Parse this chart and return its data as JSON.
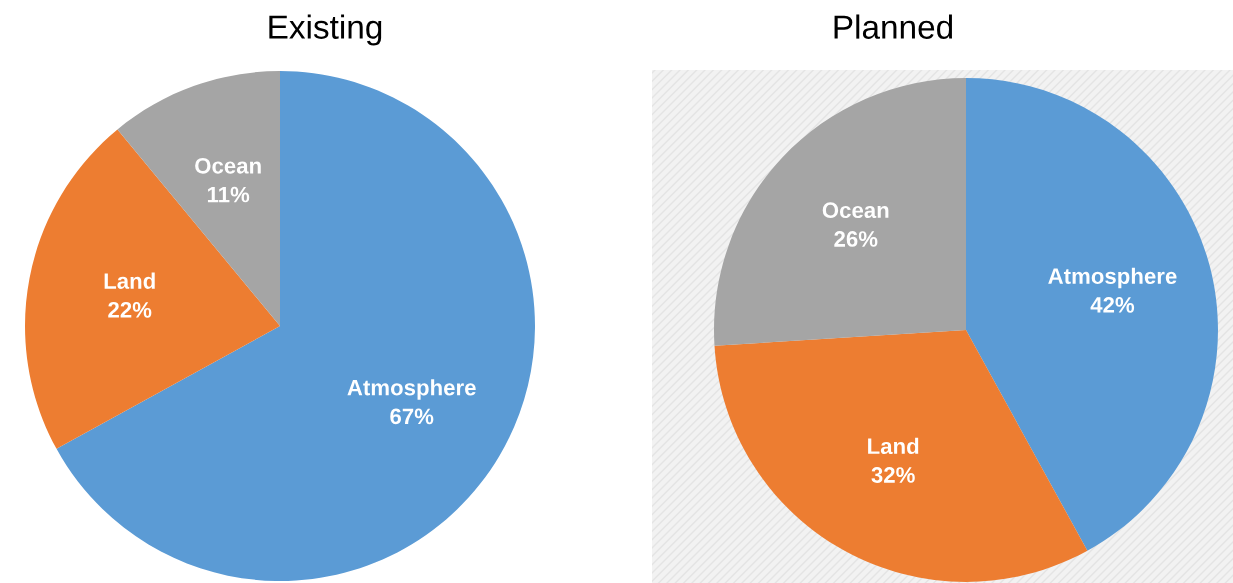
{
  "chart_data": [
    {
      "type": "pie",
      "title": "Existing",
      "categories": [
        "Atmosphere",
        "Land",
        "Ocean"
      ],
      "values": [
        67,
        22,
        11
      ],
      "value_labels": [
        "67%",
        "22%",
        "11%"
      ],
      "colors": [
        "#5b9bd5",
        "#ed7d31",
        "#a5a5a5"
      ],
      "legend": false
    },
    {
      "type": "pie",
      "title": "Planned",
      "categories": [
        "Atmosphere",
        "Land",
        "Ocean"
      ],
      "values": [
        42,
        32,
        26
      ],
      "value_labels": [
        "42%",
        "32%",
        "26%"
      ],
      "colors": [
        "#5b9bd5",
        "#ed7d31",
        "#a5a5a5"
      ],
      "legend": false
    }
  ]
}
